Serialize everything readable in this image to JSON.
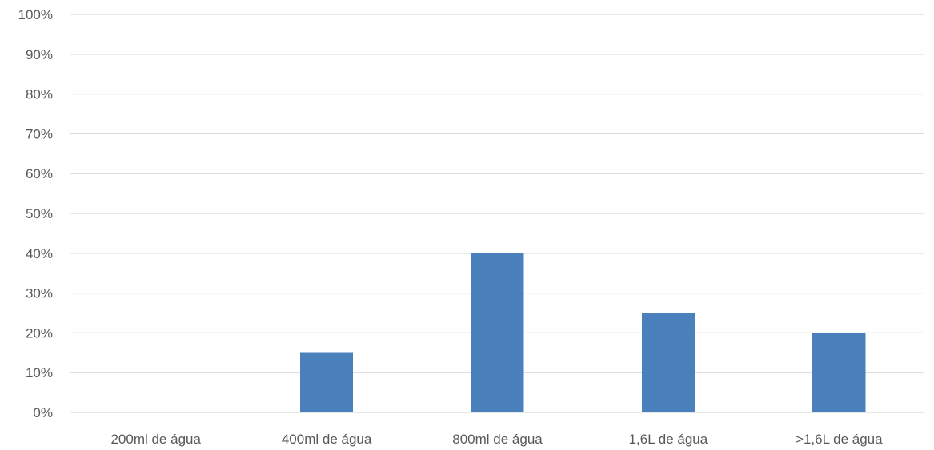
{
  "chart_data": {
    "type": "bar",
    "title": "",
    "xlabel": "",
    "ylabel": "",
    "categories": [
      "200ml de água",
      "400ml de água",
      "800ml de água",
      "1,6L de água",
      ">1,6L de água"
    ],
    "values": [
      0,
      15,
      40,
      25,
      20
    ],
    "ylim": [
      0,
      100
    ],
    "y_ticks": [
      "0%",
      "10%",
      "20%",
      "30%",
      "40%",
      "50%",
      "60%",
      "70%",
      "80%",
      "90%",
      "100%"
    ],
    "y_tick_values": [
      0,
      10,
      20,
      30,
      40,
      50,
      60,
      70,
      80,
      90,
      100
    ],
    "grid": true,
    "legend": "none",
    "bar_color": "#4a81bd",
    "grid_color": "#d9d9d9",
    "tick_label_color": "#595959"
  }
}
